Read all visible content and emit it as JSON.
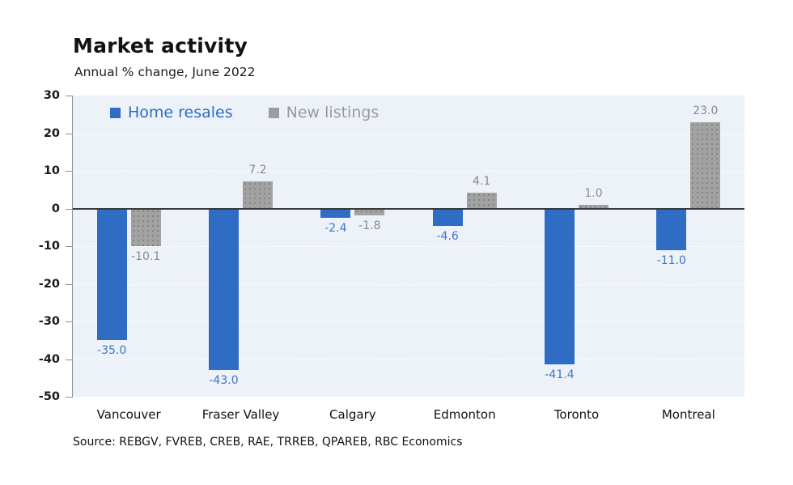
{
  "header": {
    "title": "Market activity",
    "subtitle": "Annual % change, June 2022"
  },
  "legend": [
    {
      "label": "Home resales",
      "swatch_color": "#2f6cc4",
      "text_color": "#2b6cc6"
    },
    {
      "label": "New listings",
      "swatch_color": "#9c9c9c",
      "text_color": "#9a9a9a"
    }
  ],
  "source": "Source: REBGV, FVREB, CREB, RAE, TRREB, QPAREB, RBC Economics",
  "chart_data": {
    "type": "bar",
    "title": "Market activity",
    "subtitle": "Annual % change, June 2022",
    "categories": [
      "Vancouver",
      "Fraser Valley",
      "Calgary",
      "Edmonton",
      "Toronto",
      "Montreal"
    ],
    "series": [
      {
        "name": "Home resales",
        "bar_color": "#2f6cc4",
        "label_color": "#3e74c8",
        "values": [
          -35.0,
          -43.0,
          -2.4,
          -4.6,
          -41.4,
          -11.0
        ]
      },
      {
        "name": "New listings",
        "bar_color": "#a2a2a2",
        "label_color": "#8a8a8a",
        "values": [
          -10.1,
          7.2,
          -1.8,
          4.1,
          1.0,
          23.0
        ]
      }
    ],
    "ylim": [
      -50,
      30
    ],
    "ytick_step": 10,
    "yticks": [
      30,
      20,
      10,
      0,
      -10,
      -20,
      -30,
      -40,
      -50
    ],
    "grid": true,
    "legend_position": "top-left-inside",
    "value_label_decimals": 1,
    "source": "Source: REBGV, FVREB, CREB, RAE, TRREB, QPAREB, RBC Economics"
  }
}
